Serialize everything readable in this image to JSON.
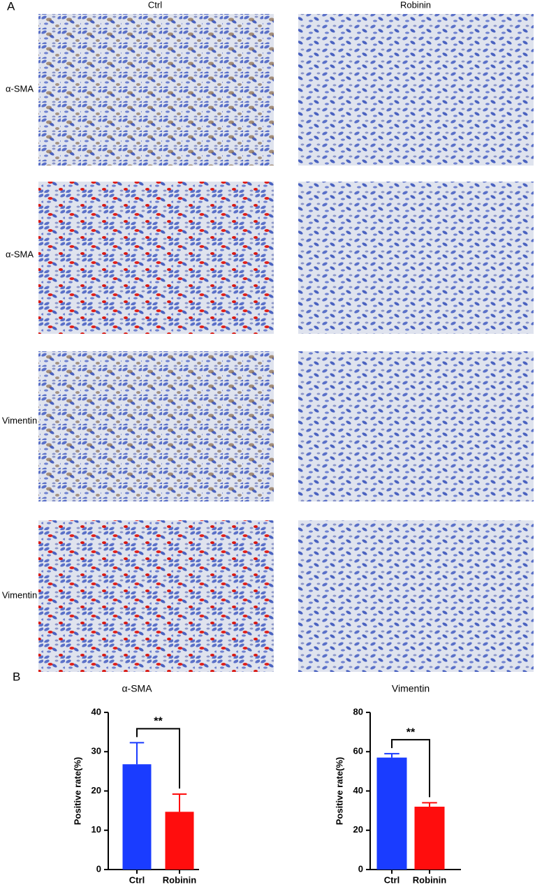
{
  "panel_a": {
    "label": "A",
    "columns": [
      "Ctrl",
      "Robinin"
    ],
    "rows": [
      "α-SMA",
      "α-SMA",
      "Vimentin",
      "Vimentin"
    ]
  },
  "panel_b": {
    "label": "B"
  },
  "chart_data": [
    {
      "type": "bar",
      "title": "α-SMA",
      "y_label": "Positive rate(%)",
      "categories": [
        "Ctrl",
        "Robinin"
      ],
      "values": [
        26.8,
        14.7
      ],
      "errors": [
        5.5,
        4.5
      ],
      "colors": [
        "#1a3cff",
        "#ff0d0d"
      ],
      "ylim": [
        0,
        40
      ],
      "yticks": [
        0,
        10,
        20,
        30,
        40
      ],
      "annotation": "**"
    },
    {
      "type": "bar",
      "title": "Vimentin",
      "y_label": "Positive rate(%)",
      "categories": [
        "Ctrl",
        "Robinin"
      ],
      "values": [
        57,
        32
      ],
      "errors": [
        2,
        2
      ],
      "colors": [
        "#1a3cff",
        "#ff0d0d"
      ],
      "ylim": [
        0,
        80
      ],
      "yticks": [
        0,
        20,
        40,
        60,
        80
      ],
      "annotation": "**"
    }
  ]
}
